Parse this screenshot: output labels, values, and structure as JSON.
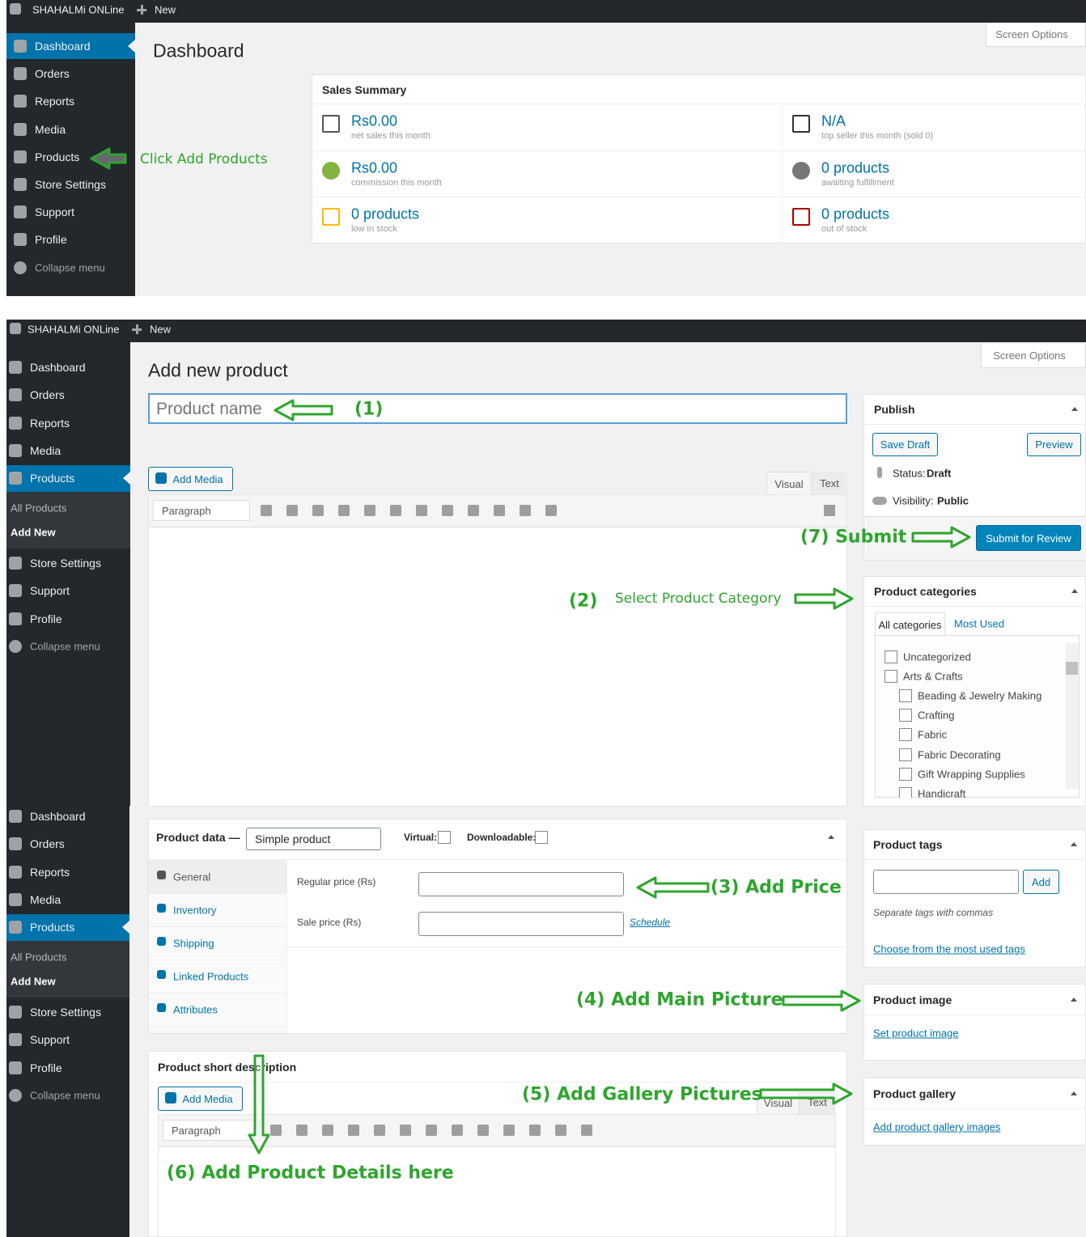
{
  "dashboard": {
    "admin_bar": {
      "site": "SHAHALMi ONLine",
      "new": "New"
    },
    "menu": [
      "Dashboard",
      "Orders",
      "Reports",
      "Media",
      "Products",
      "Store Settings",
      "Support",
      "Profile",
      "Collapse menu"
    ],
    "title": "Dashboard",
    "screen_options": "Screen Options",
    "sales_summary": {
      "title": "Sales Summary",
      "stats": [
        {
          "value": "Rs0.00",
          "label": "net sales this month"
        },
        {
          "value": "N/A",
          "label": "top seller this month (sold 0)"
        },
        {
          "value": "Rs0.00",
          "label": "commission this month"
        },
        {
          "value": "0 products",
          "label": "awaiting fulfillment"
        },
        {
          "value": "0 products",
          "label": "low in stock"
        },
        {
          "value": "0 products",
          "label": "out of stock"
        }
      ]
    },
    "annotation": "Click Add Products"
  },
  "editor": {
    "admin_bar": {
      "site": "SHAHALMi ONLine",
      "new": "New"
    },
    "sidebar": {
      "menu_top": [
        "Dashboard",
        "Orders",
        "Reports",
        "Media",
        "Products"
      ],
      "submenu": [
        "All Products",
        "Add New"
      ],
      "menu_bottom": [
        "Store Settings",
        "Support",
        "Profile",
        "Collapse menu"
      ]
    },
    "sidebar_repeat": {
      "menu_top": [
        "Dashboard",
        "Orders",
        "Reports",
        "Media",
        "Products"
      ],
      "submenu": [
        "All Products",
        "Add New"
      ],
      "menu_bottom": [
        "Store Settings",
        "Support",
        "Profile",
        "Collapse menu"
      ]
    },
    "title": "Add new product",
    "screen_options": "Screen Options",
    "product_name": "Product name",
    "description_editor": {
      "add_media": "Add Media",
      "tabs": [
        "Visual",
        "Text"
      ],
      "format": "Paragraph"
    },
    "publish": {
      "title": "Publish",
      "save_draft": "Save Draft",
      "preview": "Preview",
      "status_label": "Status:",
      "status": "Draft",
      "visibility_label": "Visibility:",
      "visibility": "Public",
      "submit": "Submit for Review"
    },
    "categories": {
      "title": "Product categories",
      "tabs": [
        "All categories",
        "Most Used"
      ],
      "parents": [
        "Uncategorized",
        "Arts & Crafts"
      ],
      "children": [
        "Beading & Jewelry Making",
        "Crafting",
        "Fabric",
        "Fabric Decorating",
        "Gift Wrapping Supplies",
        "Handicraft"
      ]
    },
    "product_data": {
      "title": "Product data —",
      "type": "Simple product",
      "virtual": "Virtual:",
      "downloadable": "Downloadable:",
      "tabs": [
        "General",
        "Inventory",
        "Shipping",
        "Linked Products",
        "Attributes"
      ],
      "regular_price": "Regular price (Rs)",
      "sale_price": "Sale price (Rs)",
      "schedule": "Schedule"
    },
    "tags": {
      "title": "Product tags",
      "add": "Add",
      "hint": "Separate tags with commas",
      "choose": "Choose from the most used tags"
    },
    "image": {
      "title": "Product image",
      "link": "Set product image"
    },
    "gallery": {
      "title": "Product gallery",
      "link": "Add product gallery images"
    },
    "short_description": {
      "title": "Product short description",
      "add_media": "Add Media",
      "tabs": [
        "Visual",
        "Text"
      ],
      "format": "Paragraph"
    },
    "annotations": {
      "name": "(1)",
      "category_num": "(2)",
      "category": "Select Product Category",
      "price": "(3) Add Price",
      "main_picture": "(4) Add Main Picture",
      "gallery": "(5) Add Gallery Pictures",
      "details": "(6) Add Product Details here",
      "submit": "(7) Submit"
    }
  }
}
